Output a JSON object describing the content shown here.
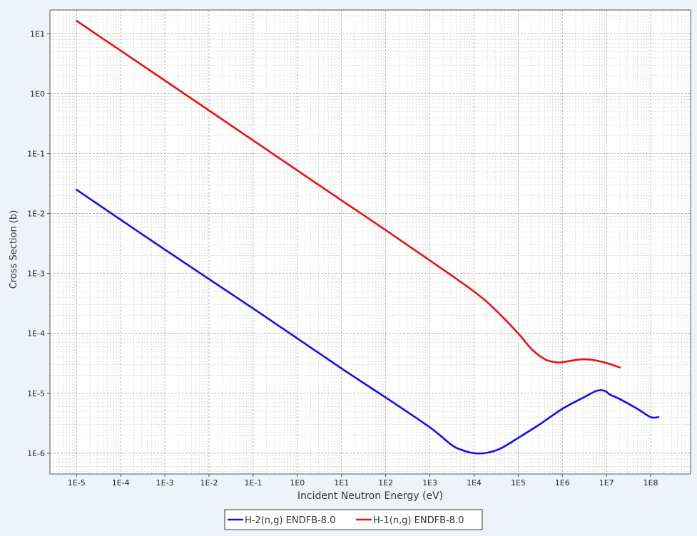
{
  "chart_data": {
    "type": "line",
    "title": "",
    "xlabel": "Incident Neutron Energy (eV)",
    "ylabel": "Cross Section (b)",
    "x_scale": "log",
    "y_scale": "log",
    "xlim": [
      2.5e-06,
      800000000.0
    ],
    "ylim": [
      4.5e-07,
      25
    ],
    "grid": true,
    "legend_position": "bottom-center",
    "x_ticks": [
      {
        "value": 1e-05,
        "label": "1E-5"
      },
      {
        "value": 0.0001,
        "label": "1E-4"
      },
      {
        "value": 0.001,
        "label": "1E-3"
      },
      {
        "value": 0.01,
        "label": "1E-2"
      },
      {
        "value": 0.1,
        "label": "1E-1"
      },
      {
        "value": 1.0,
        "label": "1E0"
      },
      {
        "value": 10.0,
        "label": "1E1"
      },
      {
        "value": 100.0,
        "label": "1E2"
      },
      {
        "value": 1000.0,
        "label": "1E3"
      },
      {
        "value": 10000.0,
        "label": "1E4"
      },
      {
        "value": 100000.0,
        "label": "1E5"
      },
      {
        "value": 1000000.0,
        "label": "1E6"
      },
      {
        "value": 10000000.0,
        "label": "1E7"
      },
      {
        "value": 100000000.0,
        "label": "1E8"
      }
    ],
    "y_ticks": [
      {
        "value": 10.0,
        "label": "1E1"
      },
      {
        "value": 1.0,
        "label": "1E0"
      },
      {
        "value": 0.1,
        "label": "1E-1"
      },
      {
        "value": 0.01,
        "label": "1E-2"
      },
      {
        "value": 0.001,
        "label": "1E-3"
      },
      {
        "value": 0.0001,
        "label": "1E-4"
      },
      {
        "value": 1e-05,
        "label": "1E-5"
      },
      {
        "value": 1e-06,
        "label": "1E-6"
      }
    ],
    "series": [
      {
        "name": "H-2(n,g) ENDFB-8.0",
        "color": "#1010ee",
        "points": [
          [
            1e-05,
            0.025
          ],
          [
            0.001,
            0.0025
          ],
          [
            0.1,
            0.00026
          ],
          [
            10.0,
            2.6e-05
          ],
          [
            100.0,
            8.5e-06
          ],
          [
            1000.0,
            2.7e-06
          ],
          [
            3000.0,
            1.4e-06
          ],
          [
            5000.0,
            1.15e-06
          ],
          [
            10000.0,
            1e-06
          ],
          [
            20000.0,
            1.02e-06
          ],
          [
            40000.0,
            1.2e-06
          ],
          [
            100000.0,
            1.8e-06
          ],
          [
            300000.0,
            3e-06
          ],
          [
            1000000.0,
            5.5e-06
          ],
          [
            3000000.0,
            8.5e-06
          ],
          [
            6000000.0,
            1.1e-05
          ],
          [
            9000000.0,
            1.1e-05
          ],
          [
            12000000.0,
            9.5e-06
          ],
          [
            20000000.0,
            8e-06
          ],
          [
            50000000.0,
            5.5e-06
          ],
          [
            100000000.0,
            4e-06
          ],
          [
            150000000.0,
            4e-06
          ]
        ]
      },
      {
        "name": "H-1(n,g) ENDFB-8.0",
        "color": "#ee1010",
        "points": [
          [
            1e-05,
            16.5
          ],
          [
            0.001,
            1.66
          ],
          [
            0.1,
            0.166
          ],
          [
            10.0,
            0.0166
          ],
          [
            100.0,
            0.0053
          ],
          [
            1000.0,
            0.00165
          ],
          [
            10000.0,
            0.0005
          ],
          [
            30000.0,
            0.00025
          ],
          [
            100000.0,
            0.0001
          ],
          [
            200000.0,
            5.5e-05
          ],
          [
            400000.0,
            3.7e-05
          ],
          [
            700000.0,
            3.3e-05
          ],
          [
            1000000.0,
            3.3e-05
          ],
          [
            2000000.0,
            3.6e-05
          ],
          [
            3000000.0,
            3.7e-05
          ],
          [
            5000000.0,
            3.6e-05
          ],
          [
            10000000.0,
            3.2e-05
          ],
          [
            20000000.0,
            2.7e-05
          ]
        ]
      }
    ]
  }
}
